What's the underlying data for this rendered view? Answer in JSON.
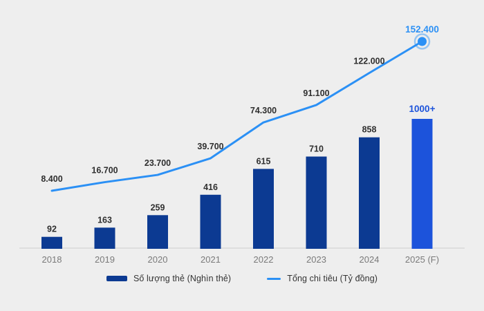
{
  "chart_data": {
    "type": "combo",
    "title": "",
    "categories": [
      "2018",
      "2019",
      "2020",
      "2021",
      "2022",
      "2023",
      "2024",
      "2025 (F)"
    ],
    "series": [
      {
        "name": "Số lượng thẻ (Nghìn thẻ)",
        "type": "bar",
        "values": [
          92,
          163,
          259,
          416,
          615,
          710,
          858,
          1000
        ],
        "labels": [
          "92",
          "163",
          "259",
          "416",
          "615",
          "710",
          "858",
          "1000+"
        ]
      },
      {
        "name": "Tổng chi tiêu (Tỷ đồng)",
        "type": "line",
        "values": [
          8400,
          16700,
          23700,
          39700,
          74300,
          91100,
          122000,
          152400
        ],
        "labels": [
          "8.400",
          "16.700",
          "23.700",
          "39.700",
          "74.300",
          "91.100",
          "122.000",
          "152.400"
        ]
      }
    ],
    "highlight_index": 7,
    "legend_position": "bottom",
    "grid": false,
    "bar_axis_range": [
      0,
      1000
    ],
    "line_axis_range": [
      8400,
      152400
    ],
    "colors": {
      "background": "#eeeeee",
      "bar": "#0c3a92",
      "bar_forecast": "#1c53db",
      "line": "#2b90f5",
      "label": "#2f2f2f",
      "axis": "#d9d9d9",
      "tick": "#7a7a7a"
    }
  }
}
